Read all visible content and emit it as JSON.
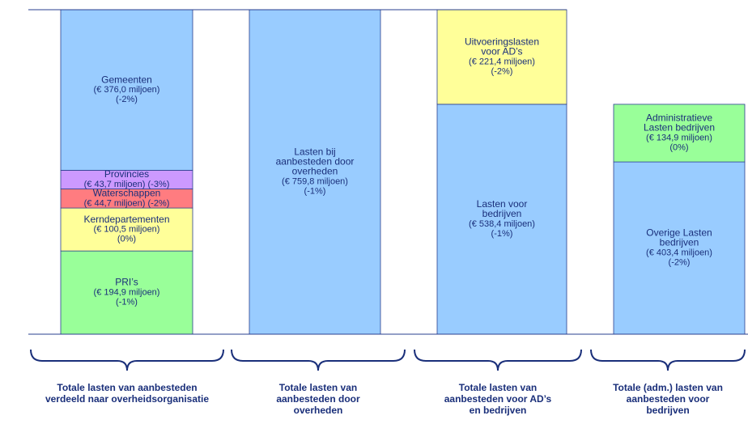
{
  "chart_data": {
    "type": "stacked-columns",
    "columns": [
      {
        "segments": [
          {
            "name": [
              "PRI’s"
            ],
            "value": 194.9,
            "value_label": "(€ 194,9 miljoen)",
            "change": "(-1%)",
            "color": "#99ff99"
          },
          {
            "name": [
              "Kerndepartementen"
            ],
            "value": 100.5,
            "value_label": "(€ 100,5 miljoen)",
            "change": "(0%)",
            "color": "#ffff99"
          },
          {
            "name": [
              "Waterschappen"
            ],
            "value": 44.7,
            "value_label": "(€ 44,7 miljoen)",
            "change": "(-2%)",
            "color": "#ff7c80"
          },
          {
            "name": [
              "Provincies"
            ],
            "value": 43.7,
            "value_label": "(€ 43,7 miljoen)",
            "change": "(-3%)",
            "color": "#cc99ff"
          },
          {
            "name": [
              "Gemeenten"
            ],
            "value": 376.0,
            "value_label": "(€ 376,0 miljoen)",
            "change": "(-2%)",
            "color": "#99ccff"
          }
        ],
        "caption": [
          "Totale lasten van aanbesteden",
          "verdeeld naar overheidsorganisatie"
        ]
      },
      {
        "segments": [
          {
            "name": [
              "Lasten bij",
              "aanbesteden door",
              "overheden"
            ],
            "value": 759.8,
            "value_label": "(€ 759,8 miljoen)",
            "change": "(-1%)",
            "color": "#99ccff"
          }
        ],
        "caption": [
          "Totale lasten van",
          "aanbesteden door",
          "overheden"
        ]
      },
      {
        "segments": [
          {
            "name": [
              "Lasten voor",
              "bedrijven"
            ],
            "value": 538.4,
            "value_label": "(€ 538,4 miljoen)",
            "change": "(-1%)",
            "color": "#99ccff"
          },
          {
            "name": [
              "Uitvoeringslasten",
              "voor AD’s"
            ],
            "value": 221.4,
            "value_label": "(€ 221,4 miljoen)",
            "change": "(-2%)",
            "color": "#ffff99"
          }
        ],
        "caption": [
          "Totale lasten van",
          "aanbesteden voor AD’s",
          "en bedrijven"
        ]
      },
      {
        "segments": [
          {
            "name": [
              "Overige Lasten",
              "bedrijven"
            ],
            "value": 403.4,
            "value_label": "(€ 403,4 miljoen)",
            "change": "(-2%)",
            "color": "#99ccff"
          },
          {
            "name": [
              "Administratieve",
              "Lasten bedrijven"
            ],
            "value": 134.9,
            "value_label": "(€ 134,9 miljoen)",
            "change": "(0%)",
            "color": "#99ff99"
          }
        ],
        "caption": [
          "Totale (adm.) lasten van",
          "aanbesteden voor",
          "bedrijven"
        ]
      }
    ]
  }
}
